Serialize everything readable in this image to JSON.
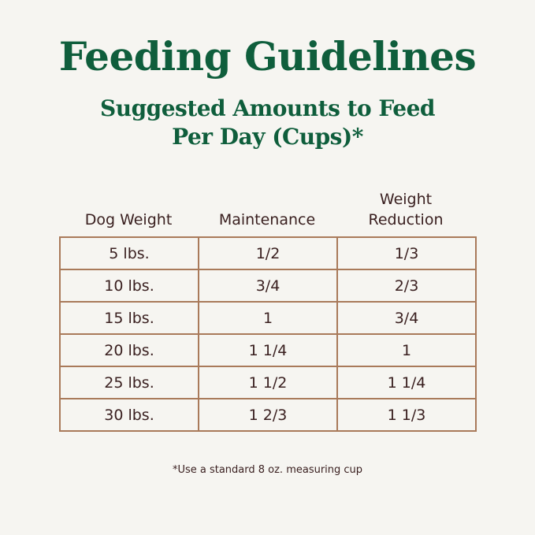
{
  "title": "Feeding Guidelines",
  "subtitle_line1": "Suggested Amounts to Feed",
  "subtitle_line2": "Per Day (Cups)*",
  "headers": [
    "Dog Weight",
    "Maintenance",
    "Weight Reduction"
  ],
  "rows": [
    [
      "5 lbs.",
      "1/2",
      "1/3"
    ],
    [
      "10 lbs.",
      "3/4",
      "2/3"
    ],
    [
      "15 lbs.",
      "1",
      "3/4"
    ],
    [
      "20 lbs.",
      "1 1/4",
      "1"
    ],
    [
      "25 lbs.",
      "1 1/2",
      "1 1/4"
    ],
    [
      "30 lbs.",
      "1 2/3",
      "1 1/3"
    ]
  ],
  "footnote": "*Use a standard 8 oz. measuring cup",
  "colors": {
    "accent": "#0f5e3c",
    "text": "#3a2020",
    "border": "#a97a5a",
    "background": "#f6f5f1"
  }
}
